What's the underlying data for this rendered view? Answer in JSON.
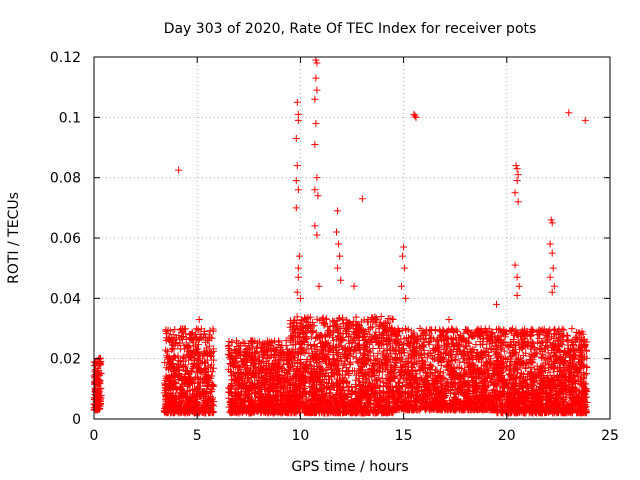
{
  "chart_data": {
    "type": "scatter",
    "title": "Day 303 of 2020, Rate Of TEC Index for receiver pots",
    "xlabel": "GPS time / hours",
    "ylabel": "ROTI / TECUs",
    "xlim": [
      0,
      25
    ],
    "ylim": [
      0,
      0.12
    ],
    "x_ticks": [
      0,
      5,
      10,
      15,
      20,
      25
    ],
    "y_ticks": [
      0,
      0.02,
      0.04,
      0.06,
      0.08,
      0.1,
      0.12
    ],
    "x_tick_labels": [
      "0",
      "5",
      "10",
      "15",
      "20",
      "25"
    ],
    "y_tick_labels": [
      "0",
      "0.02",
      "0.04",
      "0.06",
      "0.08",
      "0.1",
      "0.12"
    ],
    "grid": true,
    "marker": "+",
    "color": "#ff0000",
    "outliers": [
      {
        "x": 4.1,
        "y": 0.0825
      },
      {
        "x": 9.85,
        "y": 0.105
      },
      {
        "x": 9.9,
        "y": 0.101
      },
      {
        "x": 9.9,
        "y": 0.099
      },
      {
        "x": 9.8,
        "y": 0.093
      },
      {
        "x": 9.85,
        "y": 0.084
      },
      {
        "x": 9.8,
        "y": 0.079
      },
      {
        "x": 9.9,
        "y": 0.076
      },
      {
        "x": 9.8,
        "y": 0.07
      },
      {
        "x": 9.95,
        "y": 0.054
      },
      {
        "x": 9.9,
        "y": 0.05
      },
      {
        "x": 9.9,
        "y": 0.047
      },
      {
        "x": 9.85,
        "y": 0.042
      },
      {
        "x": 10.0,
        "y": 0.04
      },
      {
        "x": 10.75,
        "y": 0.119
      },
      {
        "x": 10.8,
        "y": 0.118
      },
      {
        "x": 10.75,
        "y": 0.113
      },
      {
        "x": 10.8,
        "y": 0.109
      },
      {
        "x": 10.7,
        "y": 0.106
      },
      {
        "x": 10.75,
        "y": 0.098
      },
      {
        "x": 10.7,
        "y": 0.091
      },
      {
        "x": 10.8,
        "y": 0.08
      },
      {
        "x": 10.7,
        "y": 0.076
      },
      {
        "x": 10.85,
        "y": 0.074
      },
      {
        "x": 10.7,
        "y": 0.064
      },
      {
        "x": 10.8,
        "y": 0.061
      },
      {
        "x": 10.9,
        "y": 0.044
      },
      {
        "x": 11.8,
        "y": 0.069
      },
      {
        "x": 11.75,
        "y": 0.062
      },
      {
        "x": 11.85,
        "y": 0.058
      },
      {
        "x": 11.9,
        "y": 0.054
      },
      {
        "x": 11.8,
        "y": 0.05
      },
      {
        "x": 11.95,
        "y": 0.046
      },
      {
        "x": 13.0,
        "y": 0.073
      },
      {
        "x": 12.6,
        "y": 0.044
      },
      {
        "x": 15.0,
        "y": 0.057
      },
      {
        "x": 14.95,
        "y": 0.054
      },
      {
        "x": 15.05,
        "y": 0.05
      },
      {
        "x": 14.9,
        "y": 0.044
      },
      {
        "x": 15.1,
        "y": 0.04
      },
      {
        "x": 15.5,
        "y": 0.101
      },
      {
        "x": 15.55,
        "y": 0.1005
      },
      {
        "x": 15.6,
        "y": 0.1
      },
      {
        "x": 20.45,
        "y": 0.084
      },
      {
        "x": 20.5,
        "y": 0.083
      },
      {
        "x": 20.55,
        "y": 0.081
      },
      {
        "x": 20.5,
        "y": 0.079
      },
      {
        "x": 20.4,
        "y": 0.075
      },
      {
        "x": 20.55,
        "y": 0.072
      },
      {
        "x": 20.4,
        "y": 0.051
      },
      {
        "x": 20.5,
        "y": 0.047
      },
      {
        "x": 20.6,
        "y": 0.044
      },
      {
        "x": 20.5,
        "y": 0.041
      },
      {
        "x": 22.15,
        "y": 0.066
      },
      {
        "x": 22.2,
        "y": 0.065
      },
      {
        "x": 22.1,
        "y": 0.058
      },
      {
        "x": 22.2,
        "y": 0.055
      },
      {
        "x": 22.25,
        "y": 0.05
      },
      {
        "x": 22.1,
        "y": 0.047
      },
      {
        "x": 22.3,
        "y": 0.044
      },
      {
        "x": 22.2,
        "y": 0.042
      },
      {
        "x": 23.0,
        "y": 0.1015
      },
      {
        "x": 23.8,
        "y": 0.099
      },
      {
        "x": 19.5,
        "y": 0.038
      },
      {
        "x": 17.2,
        "y": 0.033
      },
      {
        "x": 5.1,
        "y": 0.033
      },
      {
        "x": 3.5,
        "y": 0.026
      }
    ],
    "clusters": [
      {
        "x_range": [
          0.0,
          0.35
        ],
        "count": 120,
        "y_min": 0.003,
        "y_max": 0.021
      },
      {
        "x_range": [
          3.4,
          5.8
        ],
        "count": 700,
        "y_min": 0.002,
        "y_max": 0.03
      },
      {
        "x_range": [
          6.5,
          9.5
        ],
        "count": 900,
        "y_min": 0.002,
        "y_max": 0.026
      },
      {
        "x_range": [
          9.5,
          14.5
        ],
        "count": 1600,
        "y_min": 0.002,
        "y_max": 0.034
      },
      {
        "x_range": [
          14.5,
          19.5
        ],
        "count": 1400,
        "y_min": 0.003,
        "y_max": 0.03
      },
      {
        "x_range": [
          19.5,
          23.9
        ],
        "count": 1400,
        "y_min": 0.002,
        "y_max": 0.03
      }
    ]
  }
}
